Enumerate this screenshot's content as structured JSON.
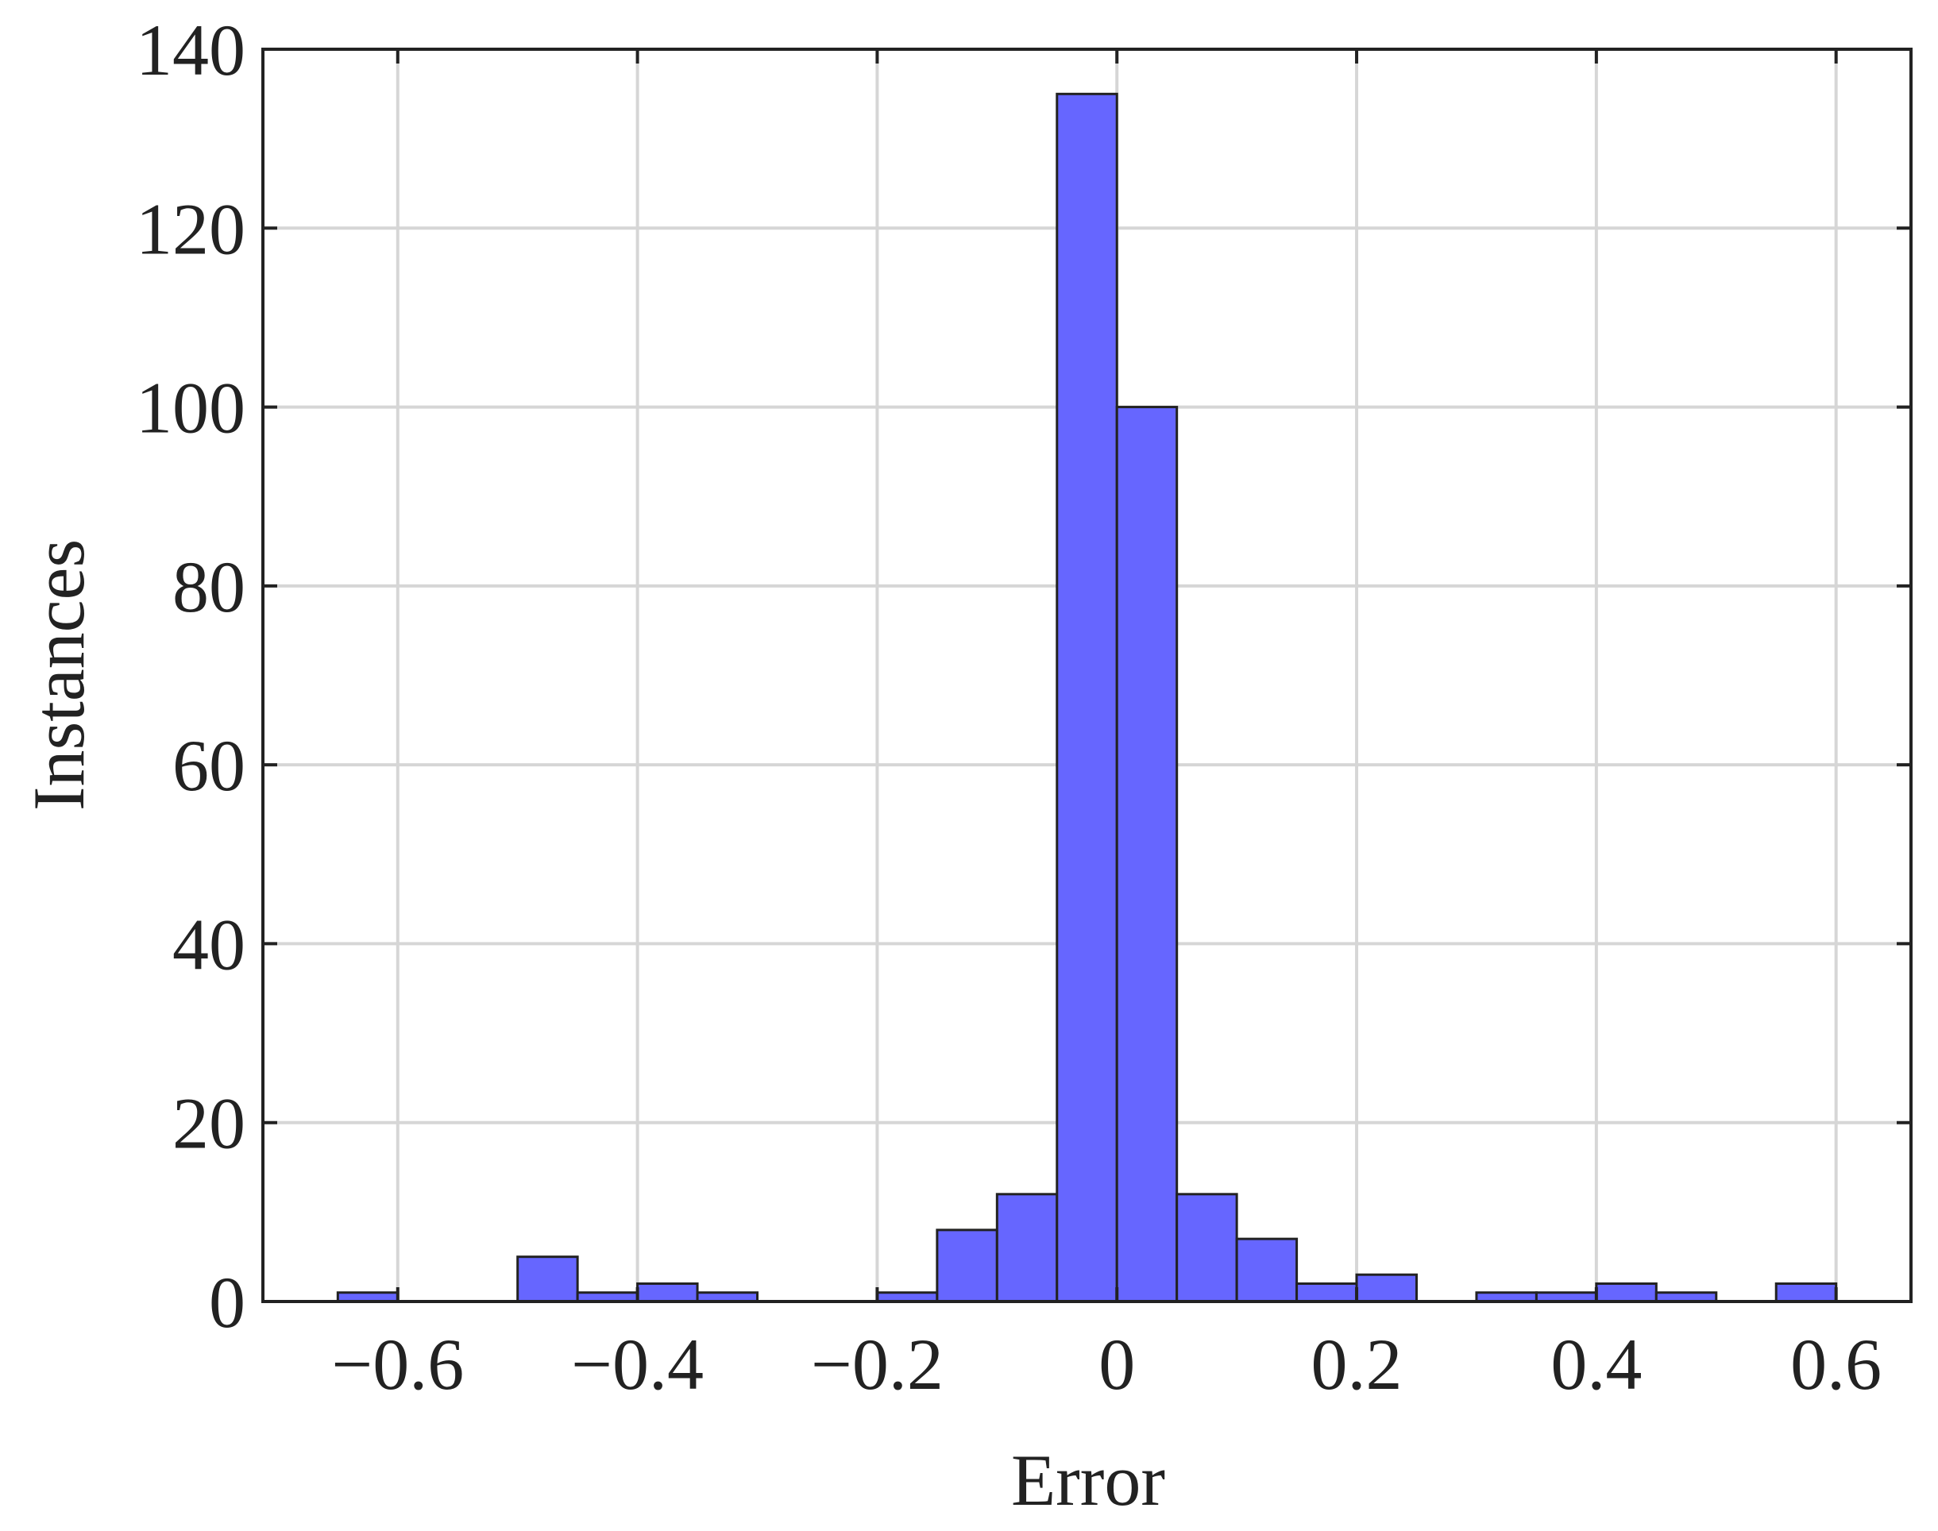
{
  "chart_data": {
    "type": "histogram",
    "xlabel": "Error",
    "ylabel": "Instances",
    "bins": [
      -0.65,
      -0.6,
      -0.55,
      -0.5,
      -0.45,
      -0.4,
      -0.35,
      -0.3,
      -0.25,
      -0.2,
      -0.15,
      -0.1,
      -0.05,
      0,
      0.05,
      0.1,
      0.15,
      0.2,
      0.25,
      0.3,
      0.35,
      0.4,
      0.45,
      0.5,
      0.55,
      0.6
    ],
    "values": [
      1,
      0,
      0,
      5,
      1,
      2,
      1,
      0,
      0,
      1,
      8,
      12,
      135,
      100,
      12,
      7,
      2,
      3,
      0,
      1,
      1,
      2,
      1,
      0,
      2
    ],
    "color": "#6666ff",
    "xlim": [
      -0.7125,
      0.6625
    ],
    "xticks": [
      {
        "value": -0.6,
        "label": "−0.6"
      },
      {
        "value": -0.4,
        "label": "−0.4"
      },
      {
        "value": -0.2,
        "label": "−0.2"
      },
      0,
      0.2,
      0.4,
      0.6
    ],
    "ylim": [
      0,
      140
    ],
    "yticks": [
      0,
      20,
      40,
      60,
      80,
      100,
      120,
      140
    ],
    "grid": true
  }
}
